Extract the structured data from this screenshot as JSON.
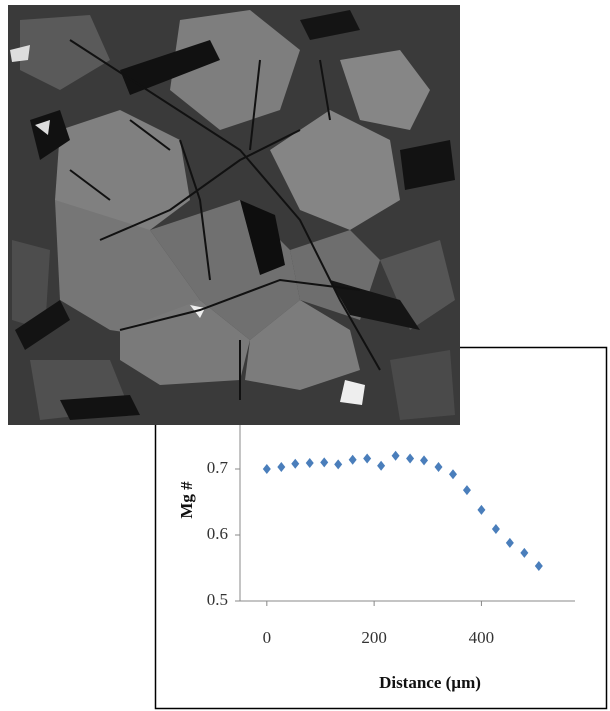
{
  "chart_data": {
    "type": "scatter",
    "y_label": "Mg #",
    "x_label": "Distance (µm)",
    "x": [
      0,
      27,
      53,
      80,
      107,
      133,
      160,
      187,
      213,
      240,
      267,
      293,
      320,
      347,
      373,
      400,
      427,
      453,
      480,
      507
    ],
    "values": [
      0.7,
      0.703,
      0.708,
      0.709,
      0.71,
      0.707,
      0.714,
      0.716,
      0.705,
      0.72,
      0.716,
      0.713,
      0.703,
      0.692,
      0.668,
      0.638,
      0.609,
      0.588,
      0.573,
      0.553
    ],
    "color": "#4a7ebb",
    "xlim": [
      -50,
      580
    ],
    "xticks": [
      0,
      200,
      400
    ],
    "ylim": [
      0.5,
      0.8
    ],
    "yticks": [
      0.5,
      0.6,
      0.7
    ],
    "grid": false
  }
}
